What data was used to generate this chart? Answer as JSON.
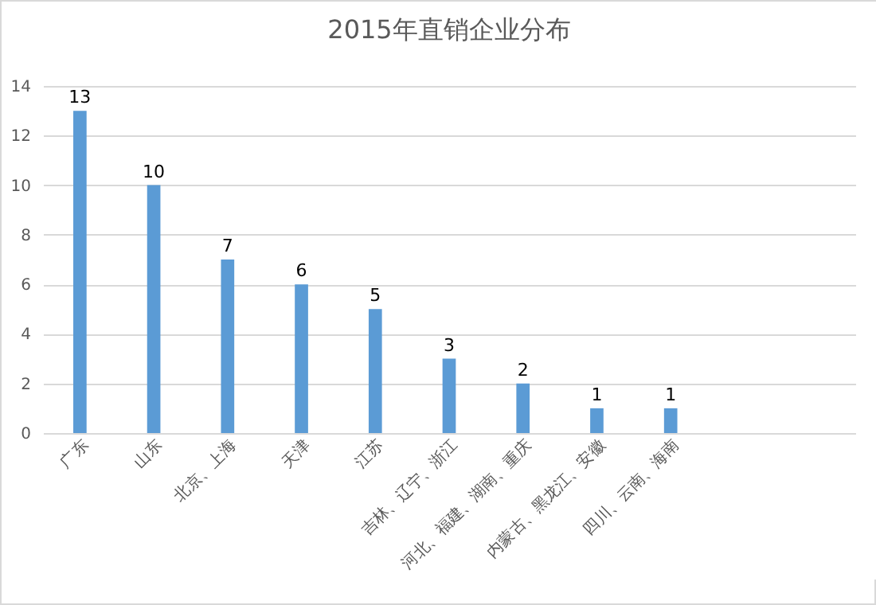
{
  "chart_data": {
    "type": "bar",
    "title": "2015年直销企业分布",
    "categories": [
      "广东",
      "山东",
      "北京、上海",
      "天津",
      "江苏",
      "吉林、辽宁、浙江",
      "河北、福建、湖南、重庆",
      "内蒙古、黑龙江、安徽",
      "四川、云南、海南",
      null,
      null
    ],
    "values": [
      13,
      10,
      7,
      6,
      5,
      3,
      2,
      1,
      1,
      null,
      null
    ],
    "color": "#5b9bd5",
    "ylim": [
      0,
      14
    ],
    "yticks": [
      0,
      2,
      4,
      6,
      8,
      10,
      12,
      14
    ],
    "grid": "y",
    "data_labels": true
  }
}
